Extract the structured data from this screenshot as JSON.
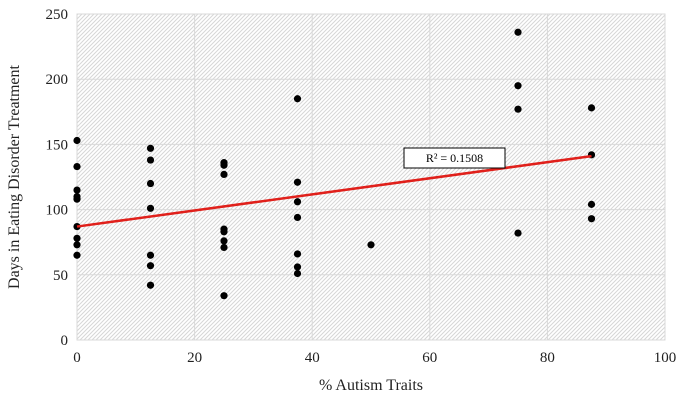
{
  "chart_data": {
    "type": "scatter",
    "title": "",
    "xlabel": "% Autism Traits",
    "ylabel": "Days in Eating Disorder Treatment",
    "xlim": [
      0,
      100
    ],
    "ylim": [
      0,
      250
    ],
    "xticks": [
      0,
      20,
      40,
      60,
      80,
      100
    ],
    "yticks": [
      0,
      50,
      100,
      150,
      200,
      250
    ],
    "grid": true,
    "legend": "none",
    "point_color": "#000000",
    "trendline": {
      "type": "linear",
      "color": "#e0201b",
      "start": [
        0,
        87
      ],
      "end": [
        87.5,
        141
      ],
      "label": "R² = 0.1508"
    },
    "points": [
      [
        0,
        153
      ],
      [
        0,
        133
      ],
      [
        0,
        115
      ],
      [
        0,
        110
      ],
      [
        0,
        108
      ],
      [
        0,
        87
      ],
      [
        0,
        78
      ],
      [
        0,
        73
      ],
      [
        0,
        65
      ],
      [
        12.5,
        147
      ],
      [
        12.5,
        138
      ],
      [
        12.5,
        120
      ],
      [
        12.5,
        101
      ],
      [
        12.5,
        65
      ],
      [
        12.5,
        57
      ],
      [
        12.5,
        42
      ],
      [
        25,
        136
      ],
      [
        25,
        134
      ],
      [
        25,
        127
      ],
      [
        25,
        85
      ],
      [
        25,
        83
      ],
      [
        25,
        76
      ],
      [
        25,
        71
      ],
      [
        25,
        34
      ],
      [
        37.5,
        185
      ],
      [
        37.5,
        121
      ],
      [
        37.5,
        106
      ],
      [
        37.5,
        94
      ],
      [
        37.5,
        66
      ],
      [
        37.5,
        56
      ],
      [
        37.5,
        51
      ],
      [
        50,
        73
      ],
      [
        75,
        236
      ],
      [
        75,
        195
      ],
      [
        75,
        177
      ],
      [
        75,
        82
      ],
      [
        87.5,
        178
      ],
      [
        87.5,
        142
      ],
      [
        87.5,
        104
      ],
      [
        87.5,
        93
      ]
    ]
  }
}
